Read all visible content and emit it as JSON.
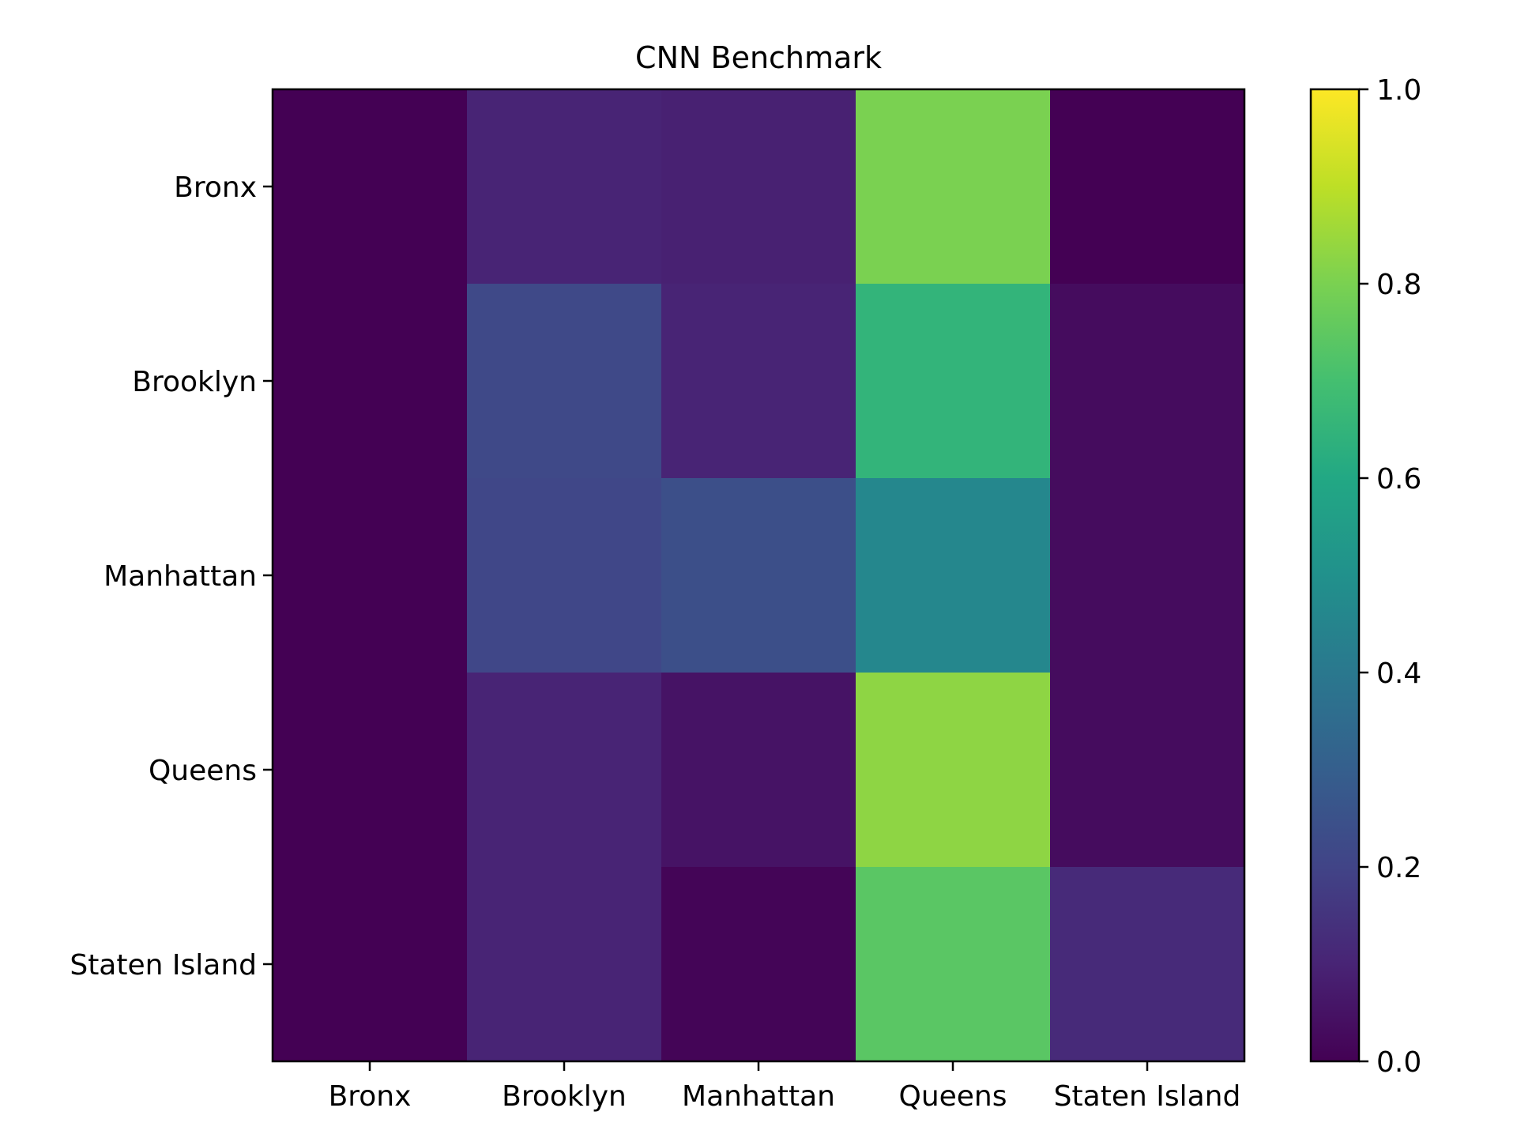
{
  "chart_data": {
    "type": "heatmap",
    "title": "CNN Benchmark",
    "xlabel": "",
    "ylabel": "",
    "x_categories": [
      "Bronx",
      "Brooklyn",
      "Manhattan",
      "Queens",
      "Staten Island"
    ],
    "y_categories": [
      "Bronx",
      "Brooklyn",
      "Manhattan",
      "Queens",
      "Staten Island"
    ],
    "values": [
      [
        0.0,
        0.1,
        0.09,
        0.8,
        0.0
      ],
      [
        0.0,
        0.22,
        0.1,
        0.65,
        0.03
      ],
      [
        0.0,
        0.21,
        0.24,
        0.46,
        0.03
      ],
      [
        0.0,
        0.1,
        0.05,
        0.83,
        0.03
      ],
      [
        0.0,
        0.1,
        0.01,
        0.74,
        0.12
      ]
    ],
    "colorbar": {
      "colormap": "viridis",
      "range": [
        0.0,
        1.0
      ],
      "ticks": [
        "0.0",
        "0.2",
        "0.4",
        "0.6",
        "0.8",
        "1.0"
      ]
    }
  }
}
